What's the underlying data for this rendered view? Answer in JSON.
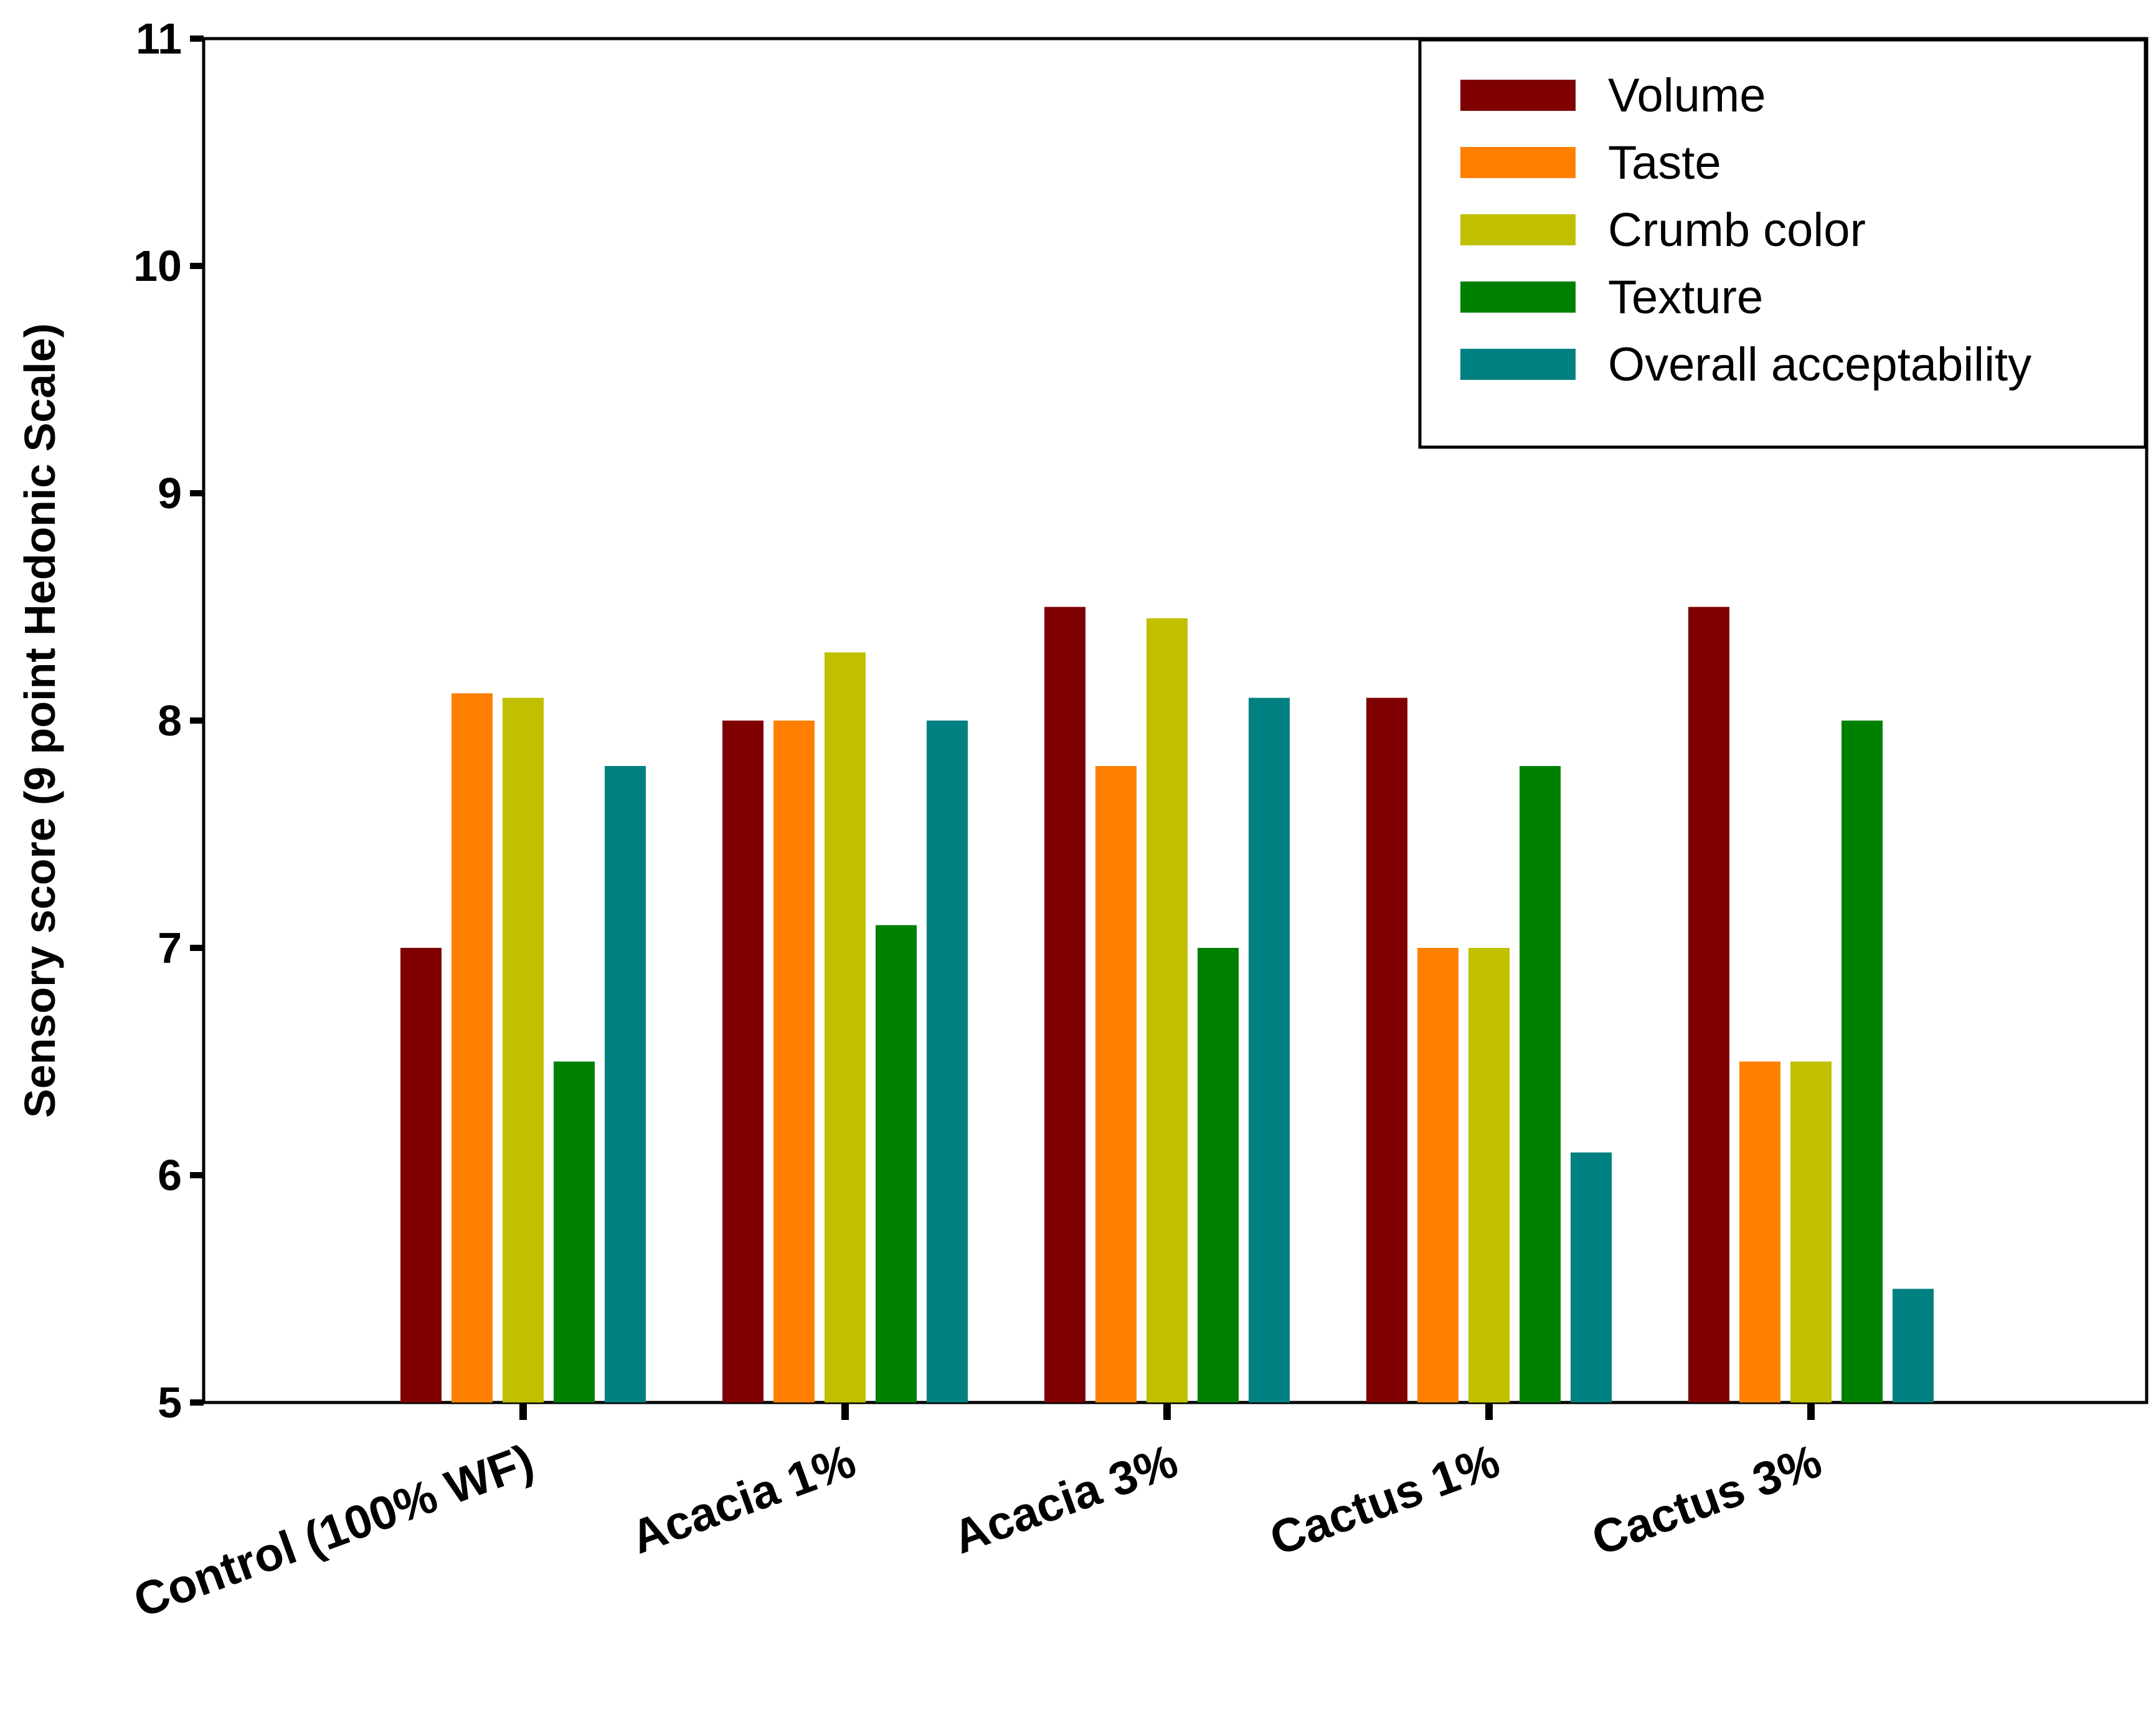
{
  "chart_data": {
    "type": "bar",
    "title": "",
    "xlabel": "",
    "ylabel": "Sensory score (9 point Hedonic Scale)",
    "ylim": [
      5,
      11
    ],
    "yticks": [
      5,
      6,
      7,
      8,
      9,
      10,
      11
    ],
    "grid": false,
    "legend_position": "top-right",
    "categories": [
      "Control (100% WF)",
      "Acacia 1%",
      "Acacia 3%",
      "Cactus 1%",
      "Cactus 3%"
    ],
    "series": [
      {
        "name": "Volume",
        "color": "#7f0000",
        "values": [
          7.0,
          8.0,
          8.5,
          8.1,
          8.5
        ]
      },
      {
        "name": "Taste",
        "color": "#ff8000",
        "values": [
          8.12,
          8.0,
          7.8,
          7.0,
          6.5
        ]
      },
      {
        "name": "Crumb color",
        "color": "#c0c000",
        "values": [
          8.1,
          8.3,
          8.45,
          7.0,
          6.5
        ]
      },
      {
        "name": "Texture",
        "color": "#008000",
        "values": [
          6.5,
          7.1,
          7.0,
          7.8,
          8.0
        ]
      },
      {
        "name": "Overall acceptability",
        "color": "#008080",
        "values": [
          7.8,
          8.0,
          8.1,
          6.1,
          5.5
        ]
      }
    ]
  }
}
